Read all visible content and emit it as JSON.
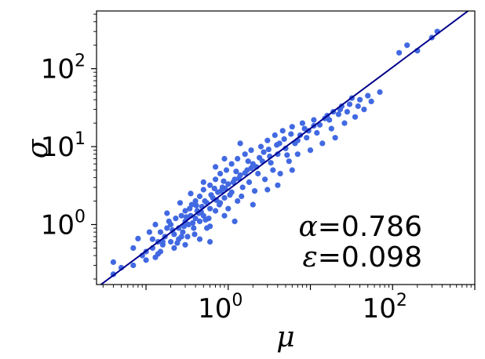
{
  "chart_data": {
    "type": "scatter",
    "title": "",
    "xlabel": "μ",
    "ylabel": "σ",
    "xscale": "log",
    "yscale": "log",
    "xlim": [
      0.025,
      1000
    ],
    "ylim": [
      0.17,
      550
    ],
    "x_ticks": [
      {
        "value": 1,
        "base": "10",
        "exp": "0"
      },
      {
        "value": 100,
        "base": "10",
        "exp": "2"
      }
    ],
    "y_ticks": [
      {
        "value": 1,
        "base": "10",
        "exp": "0"
      },
      {
        "value": 10,
        "base": "10",
        "exp": "1"
      },
      {
        "value": 100,
        "base": "10",
        "exp": "2"
      }
    ],
    "grid": false,
    "point_color": "#4169e1",
    "line_color": "#00008b",
    "fit_line": {
      "alpha": 0.786,
      "epsilon": 0.098,
      "prefactor": 2.8
    },
    "annotations": [
      {
        "symbol": "α",
        "text": "=0.786"
      },
      {
        "symbol": "ε",
        "text": "=0.098"
      }
    ],
    "series": [
      {
        "points": [
          [
            0.04,
            0.23
          ],
          [
            0.04,
            0.33
          ],
          [
            0.05,
            0.28
          ],
          [
            0.07,
            0.3
          ],
          [
            0.07,
            0.5
          ],
          [
            0.08,
            0.66
          ],
          [
            0.09,
            0.4
          ],
          [
            0.1,
            0.45
          ],
          [
            0.12,
            0.5
          ],
          [
            0.12,
            0.65
          ],
          [
            0.13,
            0.38
          ],
          [
            0.14,
            0.6
          ],
          [
            0.15,
            0.8
          ],
          [
            0.16,
            0.55
          ],
          [
            0.17,
            0.7
          ],
          [
            0.18,
            0.9
          ],
          [
            0.2,
            0.6
          ],
          [
            0.2,
            1.0
          ],
          [
            0.22,
            0.75
          ],
          [
            0.23,
            1.2
          ],
          [
            0.25,
            0.65
          ],
          [
            0.25,
            0.9
          ],
          [
            0.27,
            1.3
          ],
          [
            0.28,
            0.8
          ],
          [
            0.3,
            1.1
          ],
          [
            0.3,
            1.5
          ],
          [
            0.32,
            0.7
          ],
          [
            0.33,
            1.0
          ],
          [
            0.35,
            1.3
          ],
          [
            0.36,
            1.8
          ],
          [
            0.38,
            0.9
          ],
          [
            0.4,
            1.2
          ],
          [
            0.4,
            2.0
          ],
          [
            0.42,
            1.5
          ],
          [
            0.45,
            1.1
          ],
          [
            0.45,
            2.3
          ],
          [
            0.48,
            1.7
          ],
          [
            0.5,
            1.3
          ],
          [
            0.5,
            2.8
          ],
          [
            0.55,
            1.9
          ],
          [
            0.55,
            0.9
          ],
          [
            0.6,
            1.6
          ],
          [
            0.6,
            3.2
          ],
          [
            0.65,
            2.2
          ],
          [
            0.7,
            1.5
          ],
          [
            0.7,
            3.8
          ],
          [
            0.75,
            2.6
          ],
          [
            0.8,
            1.9
          ],
          [
            0.8,
            4.5
          ],
          [
            0.85,
            3.0
          ],
          [
            0.9,
            2.2
          ],
          [
            0.95,
            5.0
          ],
          [
            1.0,
            3.3
          ],
          [
            1.0,
            1.6
          ],
          [
            1.1,
            2.6
          ],
          [
            1.1,
            6.0
          ],
          [
            1.2,
            3.8
          ],
          [
            1.3,
            2.0
          ],
          [
            1.3,
            7.0
          ],
          [
            1.4,
            4.3
          ],
          [
            1.5,
            3.0
          ],
          [
            1.6,
            8.0
          ],
          [
            1.7,
            5.0
          ],
          [
            1.8,
            3.5
          ],
          [
            1.9,
            9.0
          ],
          [
            2.0,
            6.0
          ],
          [
            2.1,
            2.7
          ],
          [
            2.3,
            4.5
          ],
          [
            2.5,
            10.0
          ],
          [
            2.6,
            6.5
          ],
          [
            2.8,
            3.8
          ],
          [
            3.0,
            12.0
          ],
          [
            3.2,
            7.5
          ],
          [
            3.5,
            5.0
          ],
          [
            3.7,
            14.0
          ],
          [
            4.0,
            8.0
          ],
          [
            4.3,
            4.5
          ],
          [
            4.6,
            16.0
          ],
          [
            5.0,
            9.5
          ],
          [
            5.5,
            6.5
          ],
          [
            6.0,
            18.0
          ],
          [
            6.5,
            11.0
          ],
          [
            7.0,
            8.0
          ],
          [
            8.0,
            20.0
          ],
          [
            9.0,
            13.0
          ],
          [
            10.0,
            9.0
          ],
          [
            11.0,
            22.0
          ],
          [
            12.0,
            15.0
          ],
          [
            14.0,
            11.0
          ],
          [
            16.0,
            25.0
          ],
          [
            18.0,
            17.0
          ],
          [
            20.0,
            13.0
          ],
          [
            23.0,
            30.0
          ],
          [
            26.0,
            20.0
          ],
          [
            30.0,
            35.0
          ],
          [
            35.0,
            24.0
          ],
          [
            40.0,
            40.0
          ],
          [
            45.0,
            30.0
          ],
          [
            50.0,
            45.0
          ],
          [
            70.0,
            50.0
          ],
          [
            120.0,
            160.0
          ],
          [
            150.0,
            200.0
          ],
          [
            200.0,
            170.0
          ],
          [
            300.0,
            250.0
          ],
          [
            350.0,
            300.0
          ],
          [
            0.15,
            0.45
          ],
          [
            0.22,
            0.5
          ],
          [
            0.3,
            0.55
          ],
          [
            0.45,
            0.65
          ],
          [
            0.6,
            0.95
          ],
          [
            0.9,
            1.3
          ],
          [
            1.2,
            1.1
          ],
          [
            0.18,
            1.4
          ],
          [
            0.26,
            1.9
          ],
          [
            0.35,
            2.5
          ],
          [
            0.5,
            3.5
          ],
          [
            0.7,
            5.5
          ],
          [
            0.9,
            7.0
          ],
          [
            1.4,
            11.0
          ],
          [
            0.6,
            0.6
          ],
          [
            2.0,
            1.8
          ],
          [
            3.0,
            2.8
          ],
          [
            4.0,
            3.2
          ],
          [
            6.0,
            5.0
          ],
          [
            0.1,
            0.35
          ],
          [
            0.11,
            0.8
          ],
          [
            0.14,
            0.42
          ],
          [
            0.19,
            1.1
          ],
          [
            0.24,
            0.58
          ],
          [
            0.29,
            0.95
          ],
          [
            0.34,
            1.6
          ],
          [
            0.39,
            0.75
          ],
          [
            0.44,
            1.4
          ],
          [
            0.52,
            2.0
          ],
          [
            0.58,
            1.2
          ],
          [
            0.68,
            2.9
          ],
          [
            0.78,
            1.8
          ],
          [
            0.88,
            3.6
          ],
          [
            1.05,
            2.4
          ],
          [
            1.25,
            4.8
          ],
          [
            1.45,
            2.3
          ],
          [
            1.75,
            6.5
          ],
          [
            2.2,
            5.5
          ],
          [
            2.7,
            8.5
          ],
          [
            3.3,
            6.2
          ],
          [
            4.2,
            11.0
          ],
          [
            5.2,
            7.8
          ],
          [
            7.5,
            14.0
          ],
          [
            9.5,
            16.0
          ],
          [
            13.0,
            19.0
          ],
          [
            17.0,
            22.0
          ],
          [
            22.0,
            26.0
          ],
          [
            28.0,
            28.0
          ],
          [
            38.0,
            33.0
          ],
          [
            55.0,
            38.0
          ],
          [
            0.13,
            1.0
          ],
          [
            0.16,
            0.6
          ],
          [
            0.21,
            0.85
          ],
          [
            0.27,
            0.7
          ],
          [
            0.31,
            1.25
          ],
          [
            0.37,
            1.05
          ],
          [
            0.41,
            1.75
          ],
          [
            0.47,
            1.45
          ],
          [
            0.53,
            1.15
          ],
          [
            0.62,
            2.4
          ],
          [
            0.72,
            2.05
          ],
          [
            0.82,
            2.7
          ],
          [
            0.92,
            2.9
          ],
          [
            1.15,
            3.5
          ],
          [
            1.35,
            3.9
          ],
          [
            1.6,
            4.6
          ],
          [
            1.9,
            5.3
          ],
          [
            2.4,
            7.2
          ],
          [
            3.1,
            9.2
          ],
          [
            3.9,
            10.5
          ],
          [
            4.8,
            12.5
          ],
          [
            5.8,
            14.5
          ],
          [
            7.0,
            12.0
          ],
          [
            8.5,
            17.0
          ],
          [
            11.0,
            18.5
          ],
          [
            15.0,
            23.0
          ],
          [
            19.0,
            28.0
          ],
          [
            24.0,
            33.0
          ],
          [
            32.0,
            42.0
          ]
        ]
      }
    ]
  }
}
